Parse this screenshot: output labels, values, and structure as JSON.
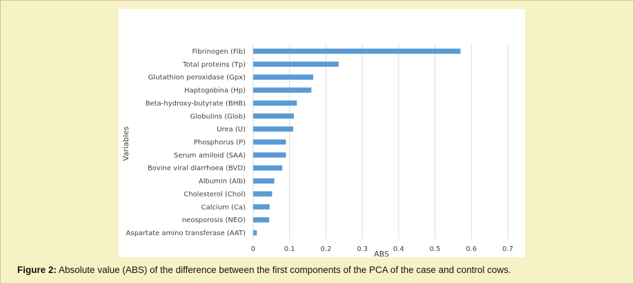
{
  "caption": {
    "label": "Figure 2:",
    "text": "Absolute value (ABS) of the difference between the first components of the PCA of the case and control cows."
  },
  "chart_data": {
    "type": "bar",
    "orientation": "horizontal",
    "title": "",
    "xlabel": "ABS",
    "ylabel": "Variables",
    "xlim": [
      0,
      0.7
    ],
    "xticks": [
      "0",
      "0.1",
      "0.2",
      "0.3",
      "0.4",
      "0.5",
      "0.6",
      "0.7"
    ],
    "grid": "vertical",
    "bar_color": "#5b9bd5",
    "categories": [
      "Fibrinogen (Fib)",
      "Total proteins (Tp)",
      "Glutathion peroxidase (Gpx)",
      "Haptogobina (Hp)",
      "Beta-hydroxy-butyrate (BHB)",
      "Globulins (Glob)",
      "Urea (U)",
      "Phosphorus (P)",
      "Serum amiloid (SAA)",
      "Bovine viral diarrhoea (BVD)",
      "Albumin (Alb)",
      "Cholesterol (Chol)",
      "Calcium (Ca)",
      "neosporosis (NEO)",
      "Aspartate amino transferase (AAT)"
    ],
    "values": [
      0.57,
      0.235,
      0.165,
      0.16,
      0.12,
      0.112,
      0.11,
      0.09,
      0.09,
      0.08,
      0.058,
      0.052,
      0.045,
      0.044,
      0.01
    ]
  }
}
